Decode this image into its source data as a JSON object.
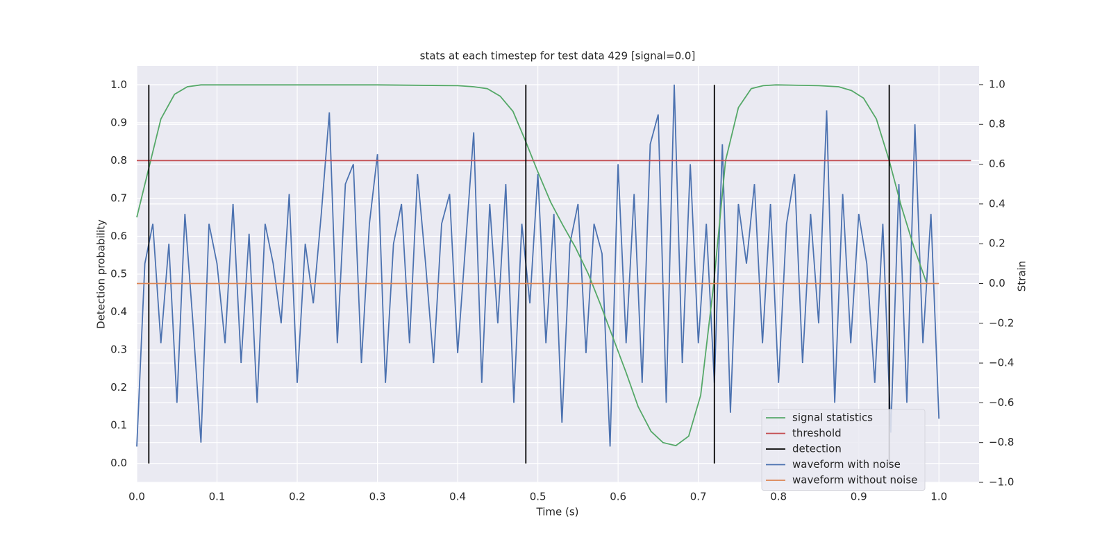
{
  "chart_data": {
    "type": "line",
    "title": "stats at each timestep for test data 429 [signal=0.0]",
    "xlabel": "Time (s)",
    "ylabel": "Detection probability",
    "y2label": "Strain",
    "xlim": [
      0,
      1.05
    ],
    "ylim": [
      -0.05,
      1.05
    ],
    "y2lim": [
      -1.0,
      1.094
    ],
    "xticks": [
      {
        "value": 0,
        "label": "0.0"
      },
      0.1,
      0.2,
      0.3,
      0.4,
      0.5,
      0.6,
      0.7,
      0.8,
      0.9,
      {
        "value": 1,
        "label": "1.0"
      }
    ],
    "yticks": [
      {
        "value": 0,
        "label": "0.0"
      },
      0.1,
      0.2,
      0.3,
      0.4,
      0.5,
      0.6,
      0.7,
      0.8,
      0.9,
      {
        "value": 1,
        "label": "1.0"
      }
    ],
    "y2ticks": [
      {
        "value": -1,
        "label": "−1.0"
      },
      {
        "value": -0.8,
        "label": "−0.8"
      },
      {
        "value": -0.6,
        "label": "−0.6"
      },
      {
        "value": -0.4,
        "label": "−0.4"
      },
      {
        "value": -0.2,
        "label": "−0.2"
      },
      {
        "value": 0,
        "label": "0.0"
      },
      0.2,
      0.4,
      0.6,
      0.8,
      {
        "value": 1,
        "label": "1.0"
      }
    ],
    "grid": true,
    "legend": "lower right",
    "series": [
      {
        "name": "signal statistics",
        "color": "#55a868",
        "x": [
          0,
          0.015,
          0.03,
          0.047,
          0.063,
          0.08,
          0.2,
          0.3,
          0.4,
          0.42,
          0.437,
          0.453,
          0.469,
          0.484,
          0.5,
          0.516,
          0.531,
          0.547,
          0.563,
          0.578,
          0.594,
          0.61,
          0.625,
          0.641,
          0.656,
          0.672,
          0.688,
          0.703,
          0.719,
          0.734,
          0.75,
          0.766,
          0.781,
          0.797,
          0.85,
          0.875,
          0.891,
          0.906,
          0.922,
          0.938,
          0.953,
          0.969,
          0.984
        ],
        "values": [
          0.65,
          0.78,
          0.91,
          0.975,
          0.995,
          1.0,
          1.0,
          1.0,
          0.998,
          0.995,
          0.99,
          0.97,
          0.93,
          0.855,
          0.77,
          0.69,
          0.63,
          0.57,
          0.5,
          0.42,
          0.33,
          0.24,
          0.15,
          0.085,
          0.055,
          0.047,
          0.072,
          0.18,
          0.47,
          0.8,
          0.94,
          0.99,
          0.998,
          1.0,
          0.998,
          0.995,
          0.985,
          0.965,
          0.91,
          0.8,
          0.68,
          0.57,
          0.48
        ]
      },
      {
        "name": "threshold",
        "color": "#c44e52",
        "x": [
          0,
          1.04
        ],
        "values": [
          0.8,
          0.8
        ]
      },
      {
        "name": "detection",
        "color": "#000000",
        "kind": "vlines",
        "x": [
          0.015,
          0.485,
          0.72,
          0.938
        ],
        "values": [
          1,
          1,
          1,
          1
        ]
      },
      {
        "name": "waveform with noise",
        "color": "#4c72b0",
        "axis": "y2",
        "x": [
          0,
          0.01,
          0.02,
          0.03,
          0.04,
          0.05,
          0.06,
          0.07,
          0.08,
          0.09,
          0.1,
          0.11,
          0.12,
          0.13,
          0.14,
          0.15,
          0.16,
          0.17,
          0.18,
          0.19,
          0.2,
          0.21,
          0.22,
          0.23,
          0.24,
          0.25,
          0.26,
          0.27,
          0.28,
          0.29,
          0.3,
          0.31,
          0.32,
          0.33,
          0.34,
          0.35,
          0.36,
          0.37,
          0.38,
          0.39,
          0.4,
          0.41,
          0.42,
          0.43,
          0.44,
          0.45,
          0.46,
          0.47,
          0.48,
          0.49,
          0.5,
          0.51,
          0.52,
          0.53,
          0.54,
          0.55,
          0.56,
          0.57,
          0.58,
          0.59,
          0.6,
          0.61,
          0.62,
          0.63,
          0.64,
          0.65,
          0.66,
          0.67,
          0.68,
          0.69,
          0.7,
          0.71,
          0.72,
          0.73,
          0.74,
          0.75,
          0.76,
          0.77,
          0.78,
          0.79,
          0.8,
          0.81,
          0.82,
          0.83,
          0.84,
          0.85,
          0.86,
          0.87,
          0.88,
          0.89,
          0.9,
          0.91,
          0.92,
          0.93,
          0.94,
          0.95,
          0.96,
          0.97,
          0.98,
          0.99,
          1.0
        ],
        "values": [
          -0.82,
          0.1,
          0.3,
          -0.3,
          0.2,
          -0.6,
          0.35,
          -0.2,
          -0.8,
          0.3,
          0.1,
          -0.3,
          0.4,
          -0.4,
          0.25,
          -0.6,
          0.3,
          0.1,
          -0.2,
          0.45,
          -0.5,
          0.2,
          -0.1,
          0.35,
          0.86,
          -0.3,
          0.5,
          0.6,
          -0.4,
          0.3,
          0.65,
          -0.5,
          0.2,
          0.4,
          -0.3,
          0.55,
          0.1,
          -0.4,
          0.3,
          0.45,
          -0.35,
          0.2,
          0.76,
          -0.5,
          0.4,
          -0.2,
          0.5,
          -0.6,
          0.3,
          -0.1,
          0.55,
          -0.3,
          0.35,
          -0.7,
          0.2,
          0.4,
          -0.35,
          0.3,
          0.15,
          -0.82,
          0.6,
          -0.3,
          0.45,
          -0.5,
          0.7,
          0.85,
          -0.6,
          1.0,
          -0.4,
          0.6,
          -0.3,
          0.3,
          -0.5,
          0.7,
          -0.65,
          0.4,
          0.1,
          0.5,
          -0.3,
          0.4,
          -0.5,
          0.3,
          0.55,
          -0.4,
          0.35,
          -0.2,
          0.87,
          -0.6,
          0.45,
          -0.3,
          0.35,
          0.1,
          -0.5,
          0.3,
          -0.75,
          0.5,
          -0.6,
          0.8,
          -0.3,
          0.35,
          -0.68
        ]
      },
      {
        "name": "waveform without noise",
        "color": "#dd8452",
        "axis": "y2",
        "x": [
          0,
          1
        ],
        "values": [
          0,
          0
        ]
      }
    ]
  }
}
